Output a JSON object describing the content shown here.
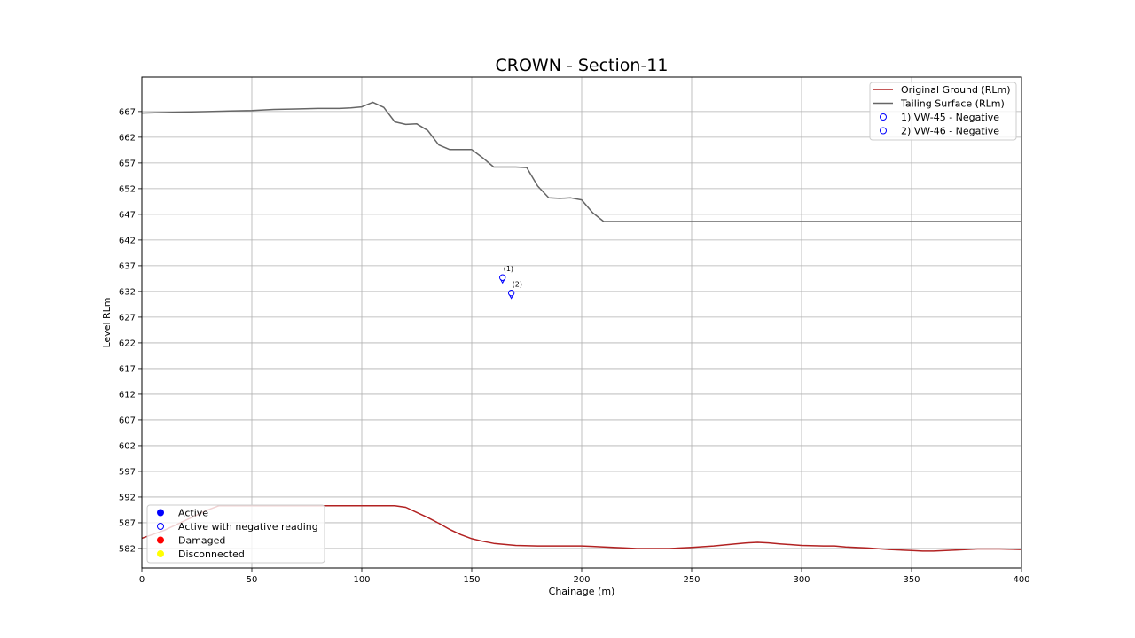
{
  "chart_data": {
    "type": "line",
    "title": "CROWN - Section-11",
    "xlabel": "Chainage (m)",
    "ylabel": "Level RLm",
    "xlim": [
      0,
      400
    ],
    "ylim": [
      578.2,
      673.7
    ],
    "xticks": [
      0,
      50,
      100,
      150,
      200,
      250,
      300,
      350,
      400
    ],
    "yticks": [
      582,
      587,
      592,
      597,
      602,
      607,
      612,
      617,
      622,
      627,
      632,
      637,
      642,
      647,
      652,
      657,
      662,
      667
    ],
    "grid": true,
    "series": [
      {
        "name": "Original Ground (RLm)",
        "color": "#b22222",
        "x": [
          0,
          10,
          20,
          30,
          35,
          40,
          50,
          60,
          70,
          80,
          90,
          100,
          110,
          115,
          120,
          125,
          130,
          135,
          140,
          145,
          150,
          155,
          160,
          170,
          180,
          190,
          200,
          205,
          210,
          220,
          225,
          230,
          240,
          250,
          260,
          270,
          275,
          280,
          285,
          290,
          300,
          310,
          315,
          320,
          330,
          340,
          350,
          355,
          360,
          370,
          380,
          390,
          400
        ],
        "y": [
          584.0,
          585.5,
          587.5,
          589.5,
          590.3,
          590.3,
          590.3,
          590.3,
          590.3,
          590.3,
          590.3,
          590.3,
          590.3,
          590.3,
          590.0,
          589.0,
          588.0,
          586.9,
          585.7,
          584.7,
          583.9,
          583.4,
          583.0,
          582.6,
          582.5,
          582.5,
          582.5,
          582.4,
          582.3,
          582.1,
          582.0,
          582.0,
          582.0,
          582.2,
          582.5,
          582.9,
          583.1,
          583.2,
          583.1,
          582.9,
          582.6,
          582.5,
          582.5,
          582.3,
          582.1,
          581.8,
          581.6,
          581.5,
          581.5,
          581.7,
          581.9,
          581.9,
          581.8
        ]
      },
      {
        "name": "Tailing Surface (RLm)",
        "color": "#666666",
        "x": [
          0,
          10,
          20,
          30,
          40,
          50,
          60,
          70,
          80,
          90,
          95,
          100,
          105,
          110,
          115,
          120,
          125,
          130,
          135,
          140,
          145,
          150,
          155,
          160,
          165,
          170,
          175,
          180,
          185,
          190,
          195,
          200,
          205,
          210,
          220,
          250,
          300,
          350,
          400
        ],
        "y": [
          666.7,
          666.8,
          666.9,
          667.0,
          667.1,
          667.2,
          667.4,
          667.5,
          667.6,
          667.6,
          667.7,
          667.9,
          668.8,
          667.8,
          665.0,
          664.5,
          664.6,
          663.3,
          660.5,
          659.6,
          659.6,
          659.6,
          658.0,
          656.2,
          656.2,
          656.2,
          656.1,
          652.5,
          650.2,
          650.1,
          650.2,
          649.8,
          647.3,
          645.6,
          645.6,
          645.6,
          645.6,
          645.6,
          645.6
        ]
      }
    ],
    "instruments": [
      {
        "name": "1) VW-45 - Negative",
        "marker_label": "(1)",
        "x": 164,
        "y": 634.7,
        "status": "Active with negative reading"
      },
      {
        "name": "2) VW-46 - Negative",
        "marker_label": "(2)",
        "x": 168,
        "y": 631.7,
        "status": "Active with negative reading"
      }
    ],
    "legend_series": {
      "placement": "top-right",
      "entries": [
        "Original Ground (RLm)",
        "Tailing Surface (RLm)",
        "1) VW-45 - Negative",
        "2) VW-46 - Negative"
      ]
    },
    "legend_status": {
      "placement": "bottom-left",
      "entries": [
        {
          "label": "Active",
          "color": "#0000ff",
          "filled": true
        },
        {
          "label": "Active with negative reading",
          "color": "#0000ff",
          "filled": false
        },
        {
          "label": "Damaged",
          "color": "#ff0000",
          "filled": true
        },
        {
          "label": "Disconnected",
          "color": "#ffff00",
          "filled": true
        }
      ]
    }
  }
}
